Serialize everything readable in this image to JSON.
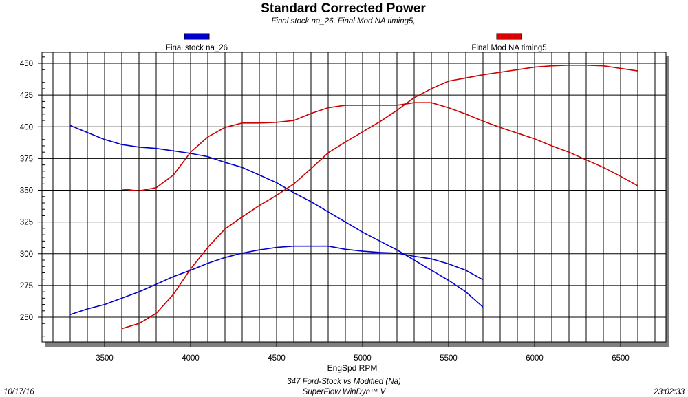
{
  "chart_data": {
    "type": "line",
    "title": "Standard Corrected Power",
    "subtitle": "Final stock na_26, Final Mod NA timing5,",
    "xlabel": "EngSpd  RPM",
    "ylabel": "",
    "xlim": [
      3136,
      6764
    ],
    "ylim": [
      230.5,
      458.7
    ],
    "x_ticks": [
      3500,
      4000,
      4500,
      5000,
      5500,
      6000,
      6500
    ],
    "x_tick_labels": [
      "3500",
      "4000",
      "4500",
      "5000",
      "5500",
      "6000",
      "6500"
    ],
    "y_ticks": [
      250,
      275,
      300,
      325,
      350,
      375,
      400,
      425,
      450
    ],
    "y_tick_labels": [
      "250",
      "275",
      "300",
      "325",
      "350",
      "375",
      "400",
      "425",
      "450"
    ],
    "grid": true,
    "legend": [
      {
        "name": "Final stock na_26",
        "color": "#0000cc",
        "position": "top-left"
      },
      {
        "name": "Final Mod NA timing5",
        "color": "#dd0000",
        "position": "top-right"
      }
    ],
    "series": [
      {
        "name": "Final stock na_26 torque",
        "color": "#0000cc",
        "x": [
          3300,
          3400,
          3500,
          3600,
          3700,
          3800,
          3900,
          4000,
          4100,
          4200,
          4300,
          4400,
          4500,
          4600,
          4700,
          4800,
          4900,
          5000,
          5100,
          5200,
          5300,
          5400,
          5500,
          5600,
          5700
        ],
        "y": [
          401,
          395.5,
          390,
          386,
          384,
          383,
          381,
          379,
          376.5,
          372,
          368,
          362,
          356,
          348,
          341,
          333,
          325,
          317,
          310,
          303,
          295,
          287,
          279,
          270,
          258
        ]
      },
      {
        "name": "Final stock na_26 power",
        "color": "#0000cc",
        "x": [
          3300,
          3400,
          3500,
          3600,
          3700,
          3800,
          3900,
          4000,
          4100,
          4200,
          4300,
          4400,
          4500,
          4600,
          4700,
          4800,
          4900,
          5000,
          5100,
          5200,
          5300,
          5400,
          5500,
          5600,
          5700
        ],
        "y": [
          252,
          256.5,
          260,
          265,
          270,
          276,
          282,
          287,
          292.5,
          297,
          300.5,
          303,
          305,
          306,
          306,
          306,
          303.5,
          302,
          301,
          300.5,
          298,
          296,
          292,
          287,
          279.5
        ]
      },
      {
        "name": "Final Mod NA timing5 torque",
        "color": "#cc0000",
        "x": [
          3600,
          3700,
          3800,
          3900,
          4000,
          4100,
          4200,
          4300,
          4400,
          4500,
          4600,
          4700,
          4800,
          4900,
          5000,
          5100,
          5200,
          5300,
          5400,
          5500,
          5600,
          5700,
          5800,
          5900,
          6000,
          6100,
          6200,
          6300,
          6400,
          6500,
          6600
        ],
        "y": [
          351,
          349.5,
          352,
          362,
          380,
          392,
          399.5,
          403,
          403,
          403.5,
          405,
          410.5,
          415,
          417,
          417,
          417,
          417,
          419,
          419,
          415,
          410,
          404.5,
          399.5,
          395,
          390.5,
          385,
          380,
          374,
          368,
          361,
          353.5
        ]
      },
      {
        "name": "Final Mod NA timing5 power",
        "color": "#cc0000",
        "x": [
          3600,
          3700,
          3800,
          3900,
          4000,
          4100,
          4200,
          4300,
          4400,
          4500,
          4600,
          4700,
          4800,
          4900,
          5000,
          5100,
          5200,
          5300,
          5400,
          5500,
          5600,
          5700,
          5800,
          5900,
          6000,
          6100,
          6200,
          6300,
          6400,
          6500,
          6600
        ],
        "y": [
          241,
          245,
          253,
          268,
          288,
          305,
          319.5,
          329,
          338,
          346,
          355,
          367,
          379.5,
          388,
          396,
          404,
          413,
          423,
          430,
          436,
          438.5,
          441,
          443,
          445,
          447,
          448,
          448.5,
          448.5,
          448,
          446,
          444
        ]
      }
    ]
  },
  "footer": {
    "date": "10/17/16",
    "time": "23:02:33",
    "test_name": "347 Ford-Stock vs Modified (Na)",
    "software": "SuperFlow WinDyn™ V"
  }
}
